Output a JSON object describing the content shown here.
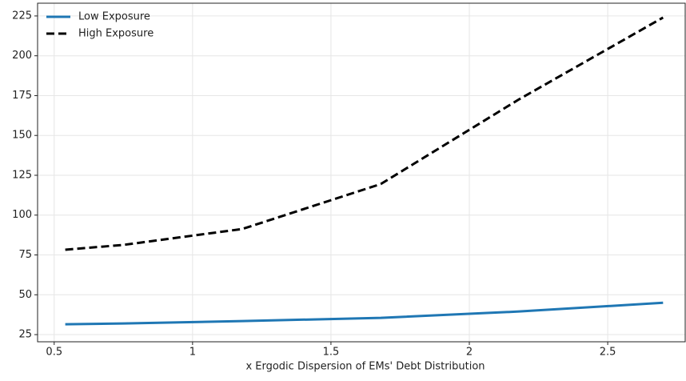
{
  "chart_data": {
    "type": "line",
    "xlabel": "x Ergodic Dispersion of EMs' Debt Distribution",
    "x": [
      0.54,
      0.75,
      1.18,
      1.68,
      2.18,
      2.7
    ],
    "series": [
      {
        "name": "Low Exposure",
        "color": "#1f77b4",
        "dash": "solid",
        "values": [
          31.5,
          32,
          33.5,
          35.5,
          39.5,
          45
        ]
      },
      {
        "name": "High Exposure",
        "color": "#000000",
        "dash": "dashed",
        "values": [
          78.3,
          81.3,
          91.3,
          119.5,
          172.7,
          224
        ]
      }
    ],
    "xlim": [
      0.44,
      2.78
    ],
    "xticks": [
      0.5,
      1.0,
      1.5,
      2.0,
      2.5
    ],
    "ylim": [
      20.5,
      233
    ],
    "yticks": [
      25,
      50,
      75,
      100,
      125,
      150,
      175,
      200,
      225
    ],
    "grid": true,
    "legend": "upper-left"
  }
}
